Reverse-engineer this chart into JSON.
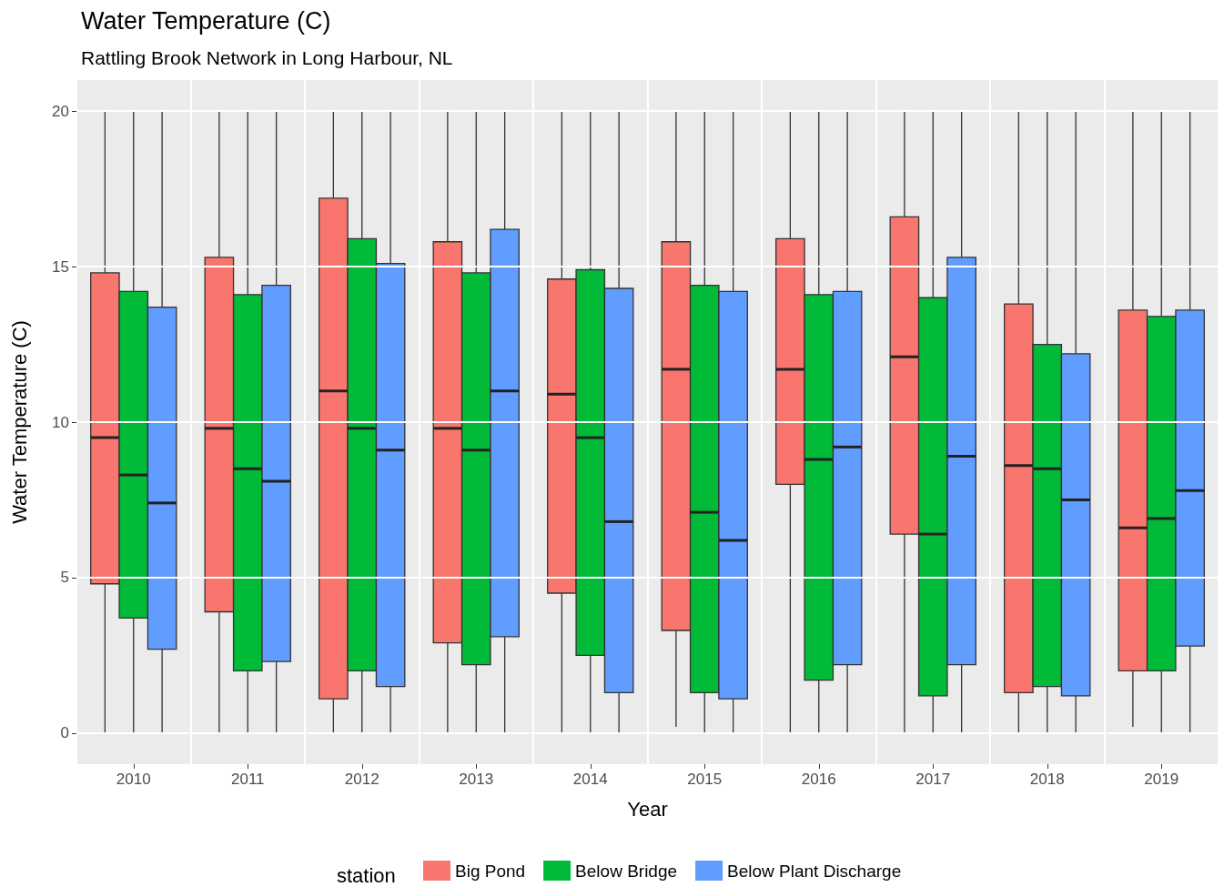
{
  "chart_data": {
    "type": "box",
    "title": "Water Temperature (C)",
    "subtitle": "Rattling Brook Network in Long Harbour, NL",
    "xlabel": "Year",
    "ylabel": "Water Temperature (C)",
    "legend_title": "station",
    "categories": [
      "2010",
      "2011",
      "2012",
      "2013",
      "2014",
      "2015",
      "2016",
      "2017",
      "2018",
      "2019"
    ],
    "ylim": [
      -1,
      21
    ],
    "yticks": [
      0,
      5,
      10,
      15,
      20
    ],
    "grid": true,
    "legend": "bottom",
    "series": [
      {
        "name": "Big Pond",
        "color": "#f8766d",
        "boxes": [
          {
            "low": 0,
            "q1": 4.8,
            "median": 9.5,
            "q3": 14.8,
            "high": 20
          },
          {
            "low": 0,
            "q1": 3.9,
            "median": 9.8,
            "q3": 15.3,
            "high": 20
          },
          {
            "low": 0,
            "q1": 1.1,
            "median": 11.0,
            "q3": 17.2,
            "high": 20
          },
          {
            "low": 0,
            "q1": 2.9,
            "median": 9.8,
            "q3": 15.8,
            "high": 20
          },
          {
            "low": 0,
            "q1": 4.5,
            "median": 10.9,
            "q3": 14.6,
            "high": 20
          },
          {
            "low": 0.2,
            "q1": 3.3,
            "median": 11.7,
            "q3": 15.8,
            "high": 20
          },
          {
            "low": 0,
            "q1": 8.0,
            "median": 11.7,
            "q3": 15.9,
            "high": 20
          },
          {
            "low": 0,
            "q1": 6.4,
            "median": 12.1,
            "q3": 16.6,
            "high": 20
          },
          {
            "low": 0,
            "q1": 1.3,
            "median": 8.6,
            "q3": 13.8,
            "high": 20
          },
          {
            "low": 0.2,
            "q1": 2.0,
            "median": 6.6,
            "q3": 13.6,
            "high": 20
          }
        ]
      },
      {
        "name": "Below Bridge",
        "color": "#00ba38",
        "boxes": [
          {
            "low": 0,
            "q1": 3.7,
            "median": 8.3,
            "q3": 14.2,
            "high": 20
          },
          {
            "low": 0,
            "q1": 2.0,
            "median": 8.5,
            "q3": 14.1,
            "high": 20
          },
          {
            "low": 0,
            "q1": 2.0,
            "median": 9.8,
            "q3": 15.9,
            "high": 20
          },
          {
            "low": 0,
            "q1": 2.2,
            "median": 9.1,
            "q3": 14.8,
            "high": 20
          },
          {
            "low": 0,
            "q1": 2.5,
            "median": 9.5,
            "q3": 14.9,
            "high": 20
          },
          {
            "low": 0,
            "q1": 1.3,
            "median": 7.1,
            "q3": 14.4,
            "high": 20
          },
          {
            "low": 0,
            "q1": 1.7,
            "median": 8.8,
            "q3": 14.1,
            "high": 20
          },
          {
            "low": 0,
            "q1": 1.2,
            "median": 6.4,
            "q3": 14.0,
            "high": 20
          },
          {
            "low": 0,
            "q1": 1.5,
            "median": 8.5,
            "q3": 12.5,
            "high": 20
          },
          {
            "low": 0,
            "q1": 2.0,
            "median": 6.9,
            "q3": 13.4,
            "high": 20
          }
        ]
      },
      {
        "name": "Below Plant Discharge",
        "color": "#619cff",
        "boxes": [
          {
            "low": 0,
            "q1": 2.7,
            "median": 7.4,
            "q3": 13.7,
            "high": 20
          },
          {
            "low": 0,
            "q1": 2.3,
            "median": 8.1,
            "q3": 14.4,
            "high": 20
          },
          {
            "low": 0,
            "q1": 1.5,
            "median": 9.1,
            "q3": 15.1,
            "high": 20
          },
          {
            "low": 0,
            "q1": 3.1,
            "median": 11.0,
            "q3": 16.2,
            "high": 20
          },
          {
            "low": 0,
            "q1": 1.3,
            "median": 6.8,
            "q3": 14.3,
            "high": 20
          },
          {
            "low": 0,
            "q1": 1.1,
            "median": 6.2,
            "q3": 14.2,
            "high": 20
          },
          {
            "low": 0,
            "q1": 2.2,
            "median": 9.2,
            "q3": 14.2,
            "high": 20
          },
          {
            "low": 0,
            "q1": 2.2,
            "median": 8.9,
            "q3": 15.3,
            "high": 20
          },
          {
            "low": 0,
            "q1": 1.2,
            "median": 7.5,
            "q3": 12.2,
            "high": 20
          },
          {
            "low": 0,
            "q1": 2.8,
            "median": 7.8,
            "q3": 13.6,
            "high": 20
          }
        ]
      }
    ]
  }
}
